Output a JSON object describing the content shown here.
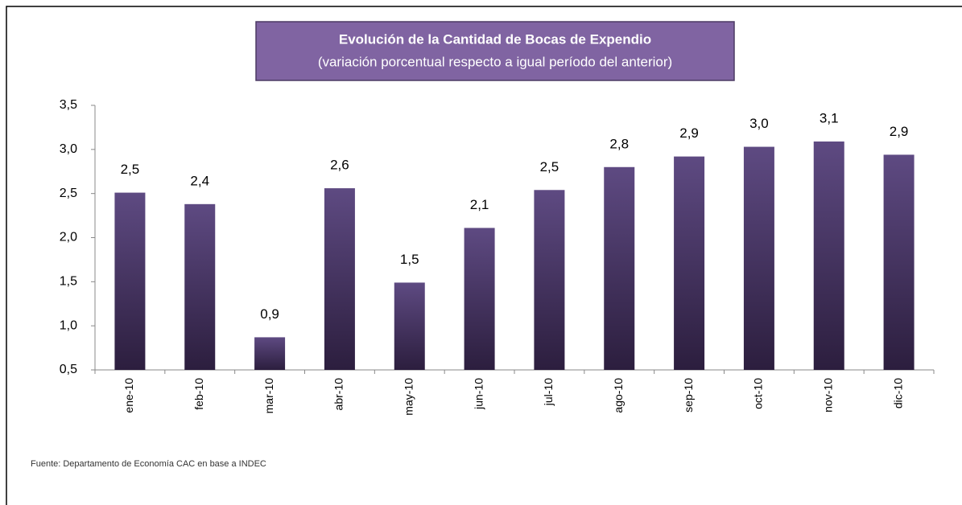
{
  "chart_data": {
    "type": "bar",
    "title": "Evolución de la Cantidad de Bocas de Expendio",
    "subtitle": "(variación porcentual respecto a igual período del anterior)",
    "source": "Fuente: Departamento de Economía CAC en base a INDEC",
    "categories": [
      "ene-10",
      "feb-10",
      "mar-10",
      "abr-10",
      "may-10",
      "jun-10",
      "jul-10",
      "ago-10",
      "sep-10",
      "oct-10",
      "nov-10",
      "dic-10"
    ],
    "values": [
      2.51,
      2.38,
      0.87,
      2.56,
      1.49,
      2.11,
      2.54,
      2.8,
      2.92,
      3.03,
      3.09,
      2.94
    ],
    "value_labels": [
      "2,5",
      "2,4",
      "0,9",
      "2,6",
      "1,5",
      "2,1",
      "2,5",
      "2,8",
      "2,9",
      "3,0",
      "3,1",
      "2,9"
    ],
    "color": "#5e4a82",
    "ylim": [
      0.5,
      3.5
    ],
    "yticks": [
      {
        "value": 0.5,
        "label": "0,5"
      },
      {
        "value": 1.0,
        "label": "1,0"
      },
      {
        "value": 1.5,
        "label": "1,5"
      },
      {
        "value": 2.0,
        "label": "2,0"
      },
      {
        "value": 2.5,
        "label": "2,5"
      },
      {
        "value": 3.0,
        "label": "3,0"
      },
      {
        "value": 3.5,
        "label": "3,5"
      }
    ],
    "grid": false
  }
}
